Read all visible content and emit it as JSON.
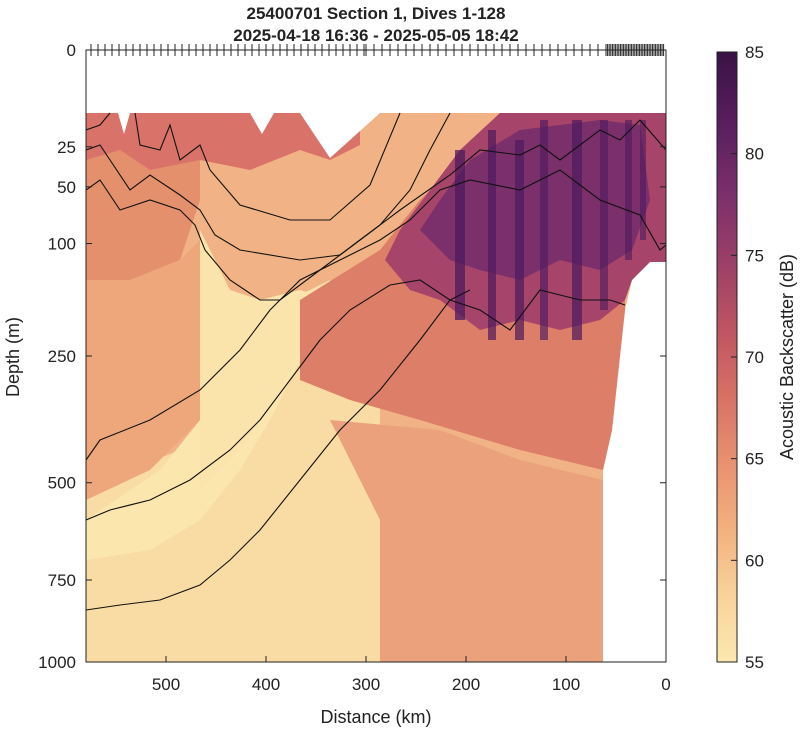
{
  "chart_data": {
    "type": "heatmap",
    "title": "25400701 Section 1, Dives 1-128",
    "subtitle": "2025-04-18 16:36 - 2025-05-05 18:42",
    "xlabel": "Distance (km)",
    "ylabel": "Depth (m)",
    "xlim": [
      580,
      0
    ],
    "ylim": [
      0,
      1000
    ],
    "y_scale": "sqrt",
    "x_ticks": [
      500,
      400,
      300,
      200,
      100,
      0
    ],
    "y_ticks": [
      0,
      25,
      50,
      100,
      250,
      500,
      750,
      1000
    ],
    "colorbar": {
      "label": "Acoustic Backscatter (dB)",
      "range": [
        55,
        85
      ],
      "ticks": [
        55,
        60,
        65,
        70,
        75,
        80,
        85
      ],
      "colors": [
        "#fbe8b0",
        "#f9d29a",
        "#f2b07e",
        "#e89070",
        "#d67064",
        "#bc5362",
        "#993f68",
        "#7a2f6b",
        "#5a1e5e",
        "#3a1246"
      ]
    },
    "contour_color": "#111111",
    "grid": false
  }
}
